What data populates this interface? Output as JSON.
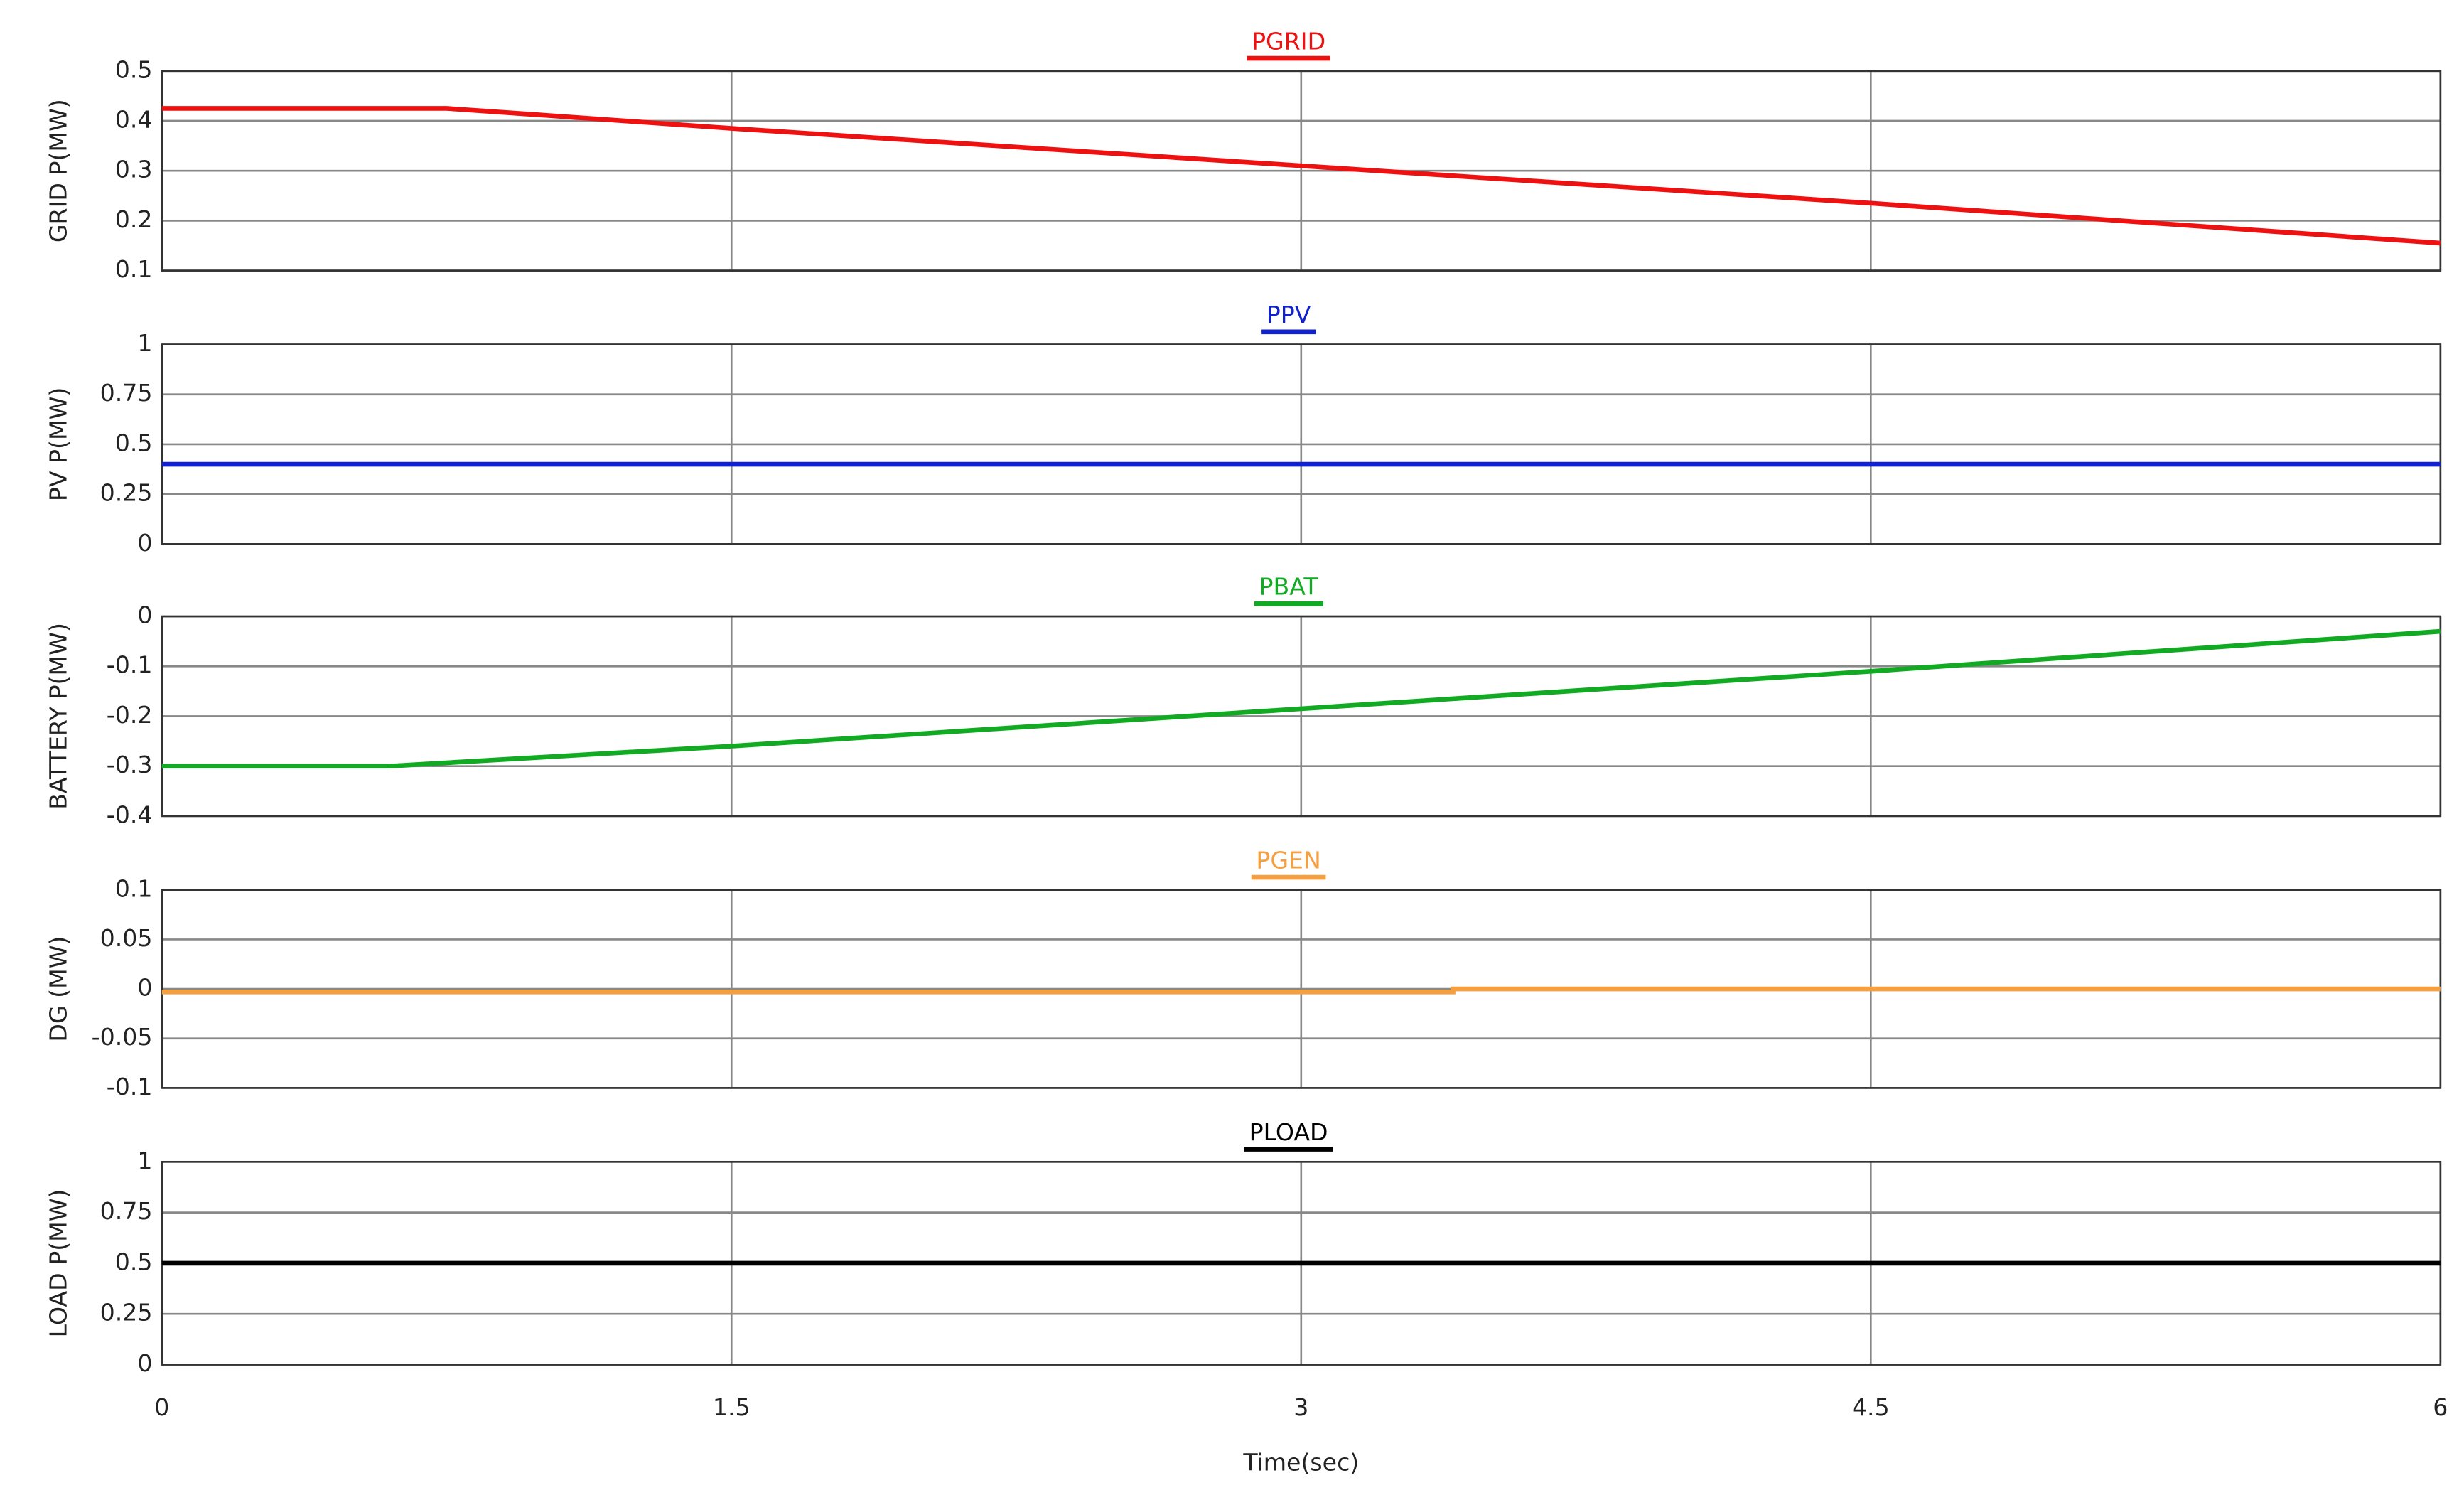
{
  "chart_data": [
    {
      "type": "line",
      "ylabel": "GRID P(MW)",
      "xlim": [
        0,
        6
      ],
      "xticks": [
        0,
        1.5,
        3,
        4.5,
        6
      ],
      "ylim": [
        0.1,
        0.5
      ],
      "yticks": [
        0.1,
        0.2,
        0.3,
        0.4,
        0.5
      ],
      "grid": true,
      "x": [
        0,
        0.75,
        1.5,
        3,
        4.5,
        6
      ],
      "series": [
        {
          "name": "PGRID",
          "color": "#ee1111",
          "values": [
            0.425,
            0.425,
            0.385,
            0.31,
            0.235,
            0.155
          ]
        }
      ]
    },
    {
      "type": "line",
      "ylabel": "PV P(MW)",
      "xlim": [
        0,
        6
      ],
      "xticks": [
        0,
        1.5,
        3,
        4.5,
        6
      ],
      "ylim": [
        0,
        1
      ],
      "yticks": [
        0,
        0.25,
        0.5,
        0.75,
        1
      ],
      "grid": true,
      "x": [
        0,
        6
      ],
      "series": [
        {
          "name": "PPV",
          "color": "#1122cc",
          "values": [
            0.4,
            0.4
          ]
        }
      ]
    },
    {
      "type": "line",
      "ylabel": "BATTERY P(MW)",
      "xlim": [
        0,
        6
      ],
      "xticks": [
        0,
        1.5,
        3,
        4.5,
        6
      ],
      "ylim": [
        -0.4,
        0
      ],
      "yticks": [
        -0.4,
        -0.3,
        -0.2,
        -0.1,
        0
      ],
      "grid": true,
      "x": [
        0,
        0.6,
        1.5,
        3,
        4.5,
        6
      ],
      "series": [
        {
          "name": "PBAT",
          "color": "#11aa22",
          "values": [
            -0.3,
            -0.3,
            -0.26,
            -0.185,
            -0.11,
            -0.03
          ]
        }
      ]
    },
    {
      "type": "line",
      "ylabel": "DG (MW)",
      "xlim": [
        0,
        6
      ],
      "xticks": [
        0,
        1.5,
        3,
        4.5,
        6
      ],
      "ylim": [
        -0.1,
        0.1
      ],
      "yticks": [
        -0.1,
        -0.05,
        0,
        0.05,
        0.1
      ],
      "grid": true,
      "x": [
        0,
        3.4,
        3.4,
        6
      ],
      "series": [
        {
          "name": "PGEN",
          "color": "#f5a040",
          "values": [
            -0.003,
            -0.003,
            0,
            0
          ]
        }
      ]
    },
    {
      "type": "line",
      "ylabel": "LOAD P(MW)",
      "xlabel": "Time(sec)",
      "xlim": [
        0,
        6
      ],
      "xticks": [
        0,
        1.5,
        3,
        4.5,
        6
      ],
      "ylim": [
        0,
        1
      ],
      "yticks": [
        0,
        0.25,
        0.5,
        0.75,
        1
      ],
      "grid": true,
      "show_xtick_labels": true,
      "x": [
        0,
        6
      ],
      "series": [
        {
          "name": "PLOAD",
          "color": "#000000",
          "values": [
            0.5,
            0.5
          ]
        }
      ]
    }
  ]
}
